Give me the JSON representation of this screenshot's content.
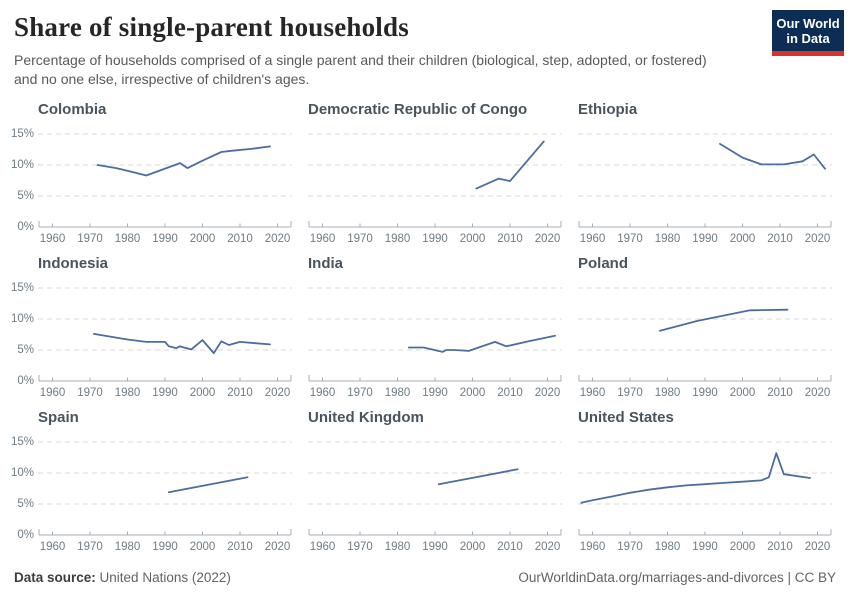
{
  "header": {
    "title": "Share of single-parent households",
    "subtitle_lines": [
      "Percentage of households comprised of a single parent and their children (biological, step, adopted, or fostered)",
      "and no one else, irrespective of children's ages."
    ]
  },
  "logo": {
    "line1": "Our World",
    "line2": "in Data",
    "bg_color": "#0c2d54",
    "accent_color": "#d7332c"
  },
  "footer": {
    "source_label": "Data source:",
    "source_value": "United Nations (2022)",
    "right_text": "OurWorldinData.org/marriages-and-divorces | CC BY"
  },
  "chart_data": {
    "type": "line",
    "layout": "3x3 small multiples, one country per panel",
    "xlim": [
      1956,
      2024
    ],
    "ylim": [
      0,
      15
    ],
    "x_ticks": [
      1960,
      1970,
      1980,
      1990,
      2000,
      2010,
      2020
    ],
    "y_ticks": [
      "0%",
      "5%",
      "10%",
      "15%"
    ],
    "y_labels_first_column_only": true,
    "grid": "horizontal-dashed",
    "line_color": "#4c6d9f",
    "ylabel": "Share of single-parent households (%)",
    "panels": [
      {
        "title": "Colombia",
        "points": [
          [
            1972,
            10.0
          ],
          [
            1977,
            9.5
          ],
          [
            1985,
            8.3
          ],
          [
            1994,
            10.3
          ],
          [
            1996,
            9.5
          ],
          [
            2000,
            10.7
          ],
          [
            2005,
            12.1
          ],
          [
            2008,
            12.3
          ],
          [
            2013,
            12.6
          ],
          [
            2018,
            13.0
          ]
        ]
      },
      {
        "title": "Democratic Republic of Congo",
        "points": [
          [
            2001,
            6.2
          ],
          [
            2007,
            7.8
          ],
          [
            2010,
            7.4
          ],
          [
            2019,
            13.8
          ]
        ]
      },
      {
        "title": "Ethiopia",
        "points": [
          [
            1994,
            13.4
          ],
          [
            2000,
            11.2
          ],
          [
            2005,
            10.1
          ],
          [
            2011,
            10.1
          ],
          [
            2016,
            10.6
          ],
          [
            2019,
            11.7
          ],
          [
            2022,
            9.4
          ]
        ]
      },
      {
        "title": "Indonesia",
        "points": [
          [
            1971,
            7.6
          ],
          [
            1976,
            7.1
          ],
          [
            1980,
            6.7
          ],
          [
            1985,
            6.3
          ],
          [
            1990,
            6.3
          ],
          [
            1991,
            5.6
          ],
          [
            1993,
            5.3
          ],
          [
            1994,
            5.6
          ],
          [
            1995,
            5.4
          ],
          [
            1997,
            5.1
          ],
          [
            2000,
            6.6
          ],
          [
            2003,
            4.5
          ],
          [
            2005,
            6.4
          ],
          [
            2007,
            5.8
          ],
          [
            2010,
            6.3
          ],
          [
            2014,
            6.1
          ],
          [
            2018,
            5.9
          ]
        ]
      },
      {
        "title": "India",
        "points": [
          [
            1983,
            5.4
          ],
          [
            1987,
            5.4
          ],
          [
            1992,
            4.7
          ],
          [
            1993,
            5.0
          ],
          [
            1995,
            5.0
          ],
          [
            1999,
            4.85
          ],
          [
            2006,
            6.3
          ],
          [
            2009,
            5.6
          ],
          [
            2015,
            6.4
          ],
          [
            2022,
            7.3
          ]
        ]
      },
      {
        "title": "Poland",
        "points": [
          [
            1978,
            8.1
          ],
          [
            1988,
            9.7
          ],
          [
            2002,
            11.4
          ],
          [
            2012,
            11.5
          ]
        ]
      },
      {
        "title": "Spain",
        "points": [
          [
            1991,
            6.9
          ],
          [
            2012,
            9.3
          ]
        ]
      },
      {
        "title": "United Kingdom",
        "points": [
          [
            1991,
            8.2
          ],
          [
            2012,
            10.6
          ]
        ]
      },
      {
        "title": "United States",
        "points": [
          [
            1957,
            5.2
          ],
          [
            1960,
            5.6
          ],
          [
            1965,
            6.2
          ],
          [
            1970,
            6.8
          ],
          [
            1975,
            7.3
          ],
          [
            1980,
            7.7
          ],
          [
            1985,
            8.0
          ],
          [
            1990,
            8.2
          ],
          [
            1995,
            8.4
          ],
          [
            2000,
            8.6
          ],
          [
            2005,
            8.8
          ],
          [
            2007,
            9.3
          ],
          [
            2009,
            13.2
          ],
          [
            2011,
            9.8
          ],
          [
            2018,
            9.2
          ]
        ]
      }
    ]
  }
}
